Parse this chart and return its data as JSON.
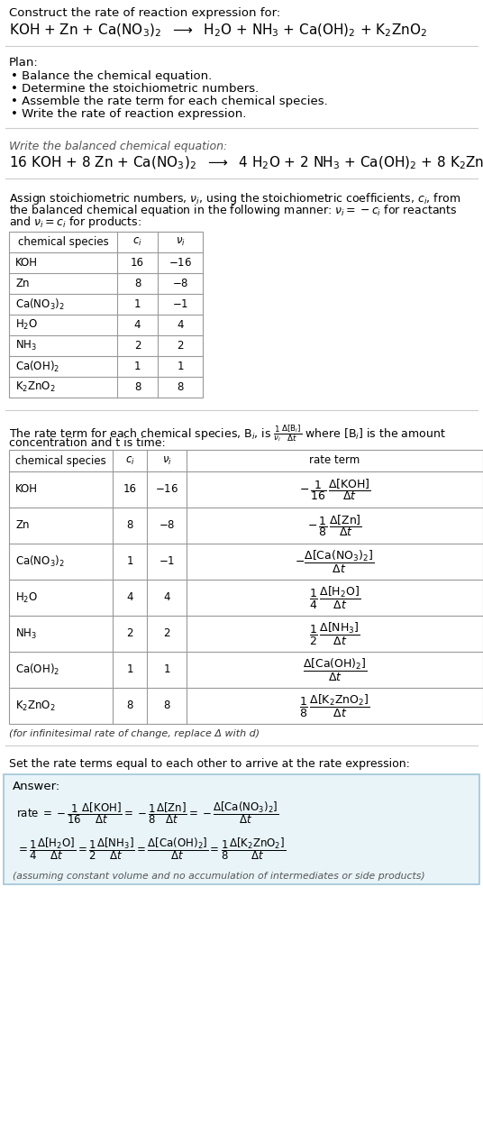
{
  "title": "Construct the rate of reaction expression for:",
  "plan_header": "Plan:",
  "plan_items": [
    "• Balance the chemical equation.",
    "• Determine the stoichiometric numbers.",
    "• Assemble the rate term for each chemical species.",
    "• Write the rate of reaction expression."
  ],
  "balanced_header": "Write the balanced chemical equation:",
  "stoich_intro_lines": [
    "Assign stoichiometric numbers, $\\nu_i$, using the stoichiometric coefficients, $c_i$, from",
    "the balanced chemical equation in the following manner: $\\nu_i = -c_i$ for reactants",
    "and $\\nu_i = c_i$ for products:"
  ],
  "table1_headers": [
    "chemical species",
    "$c_i$",
    "$\\nu_i$"
  ],
  "table1_data": [
    [
      "KOH",
      "16",
      "$-16$"
    ],
    [
      "Zn",
      "8",
      "$-8$"
    ],
    [
      "Ca(NO$_3$)$_2$",
      "1",
      "$-1$"
    ],
    [
      "H$_2$O",
      "4",
      "4"
    ],
    [
      "NH$_3$",
      "2",
      "2"
    ],
    [
      "Ca(OH)$_2$",
      "1",
      "1"
    ],
    [
      "K$_2$ZnO$_2$",
      "8",
      "8"
    ]
  ],
  "table2_headers": [
    "chemical species",
    "$c_i$",
    "$\\nu_i$",
    "rate term"
  ],
  "table2_data_species": [
    "KOH",
    "Zn",
    "Ca(NO$_3$)$_2$",
    "H$_2$O",
    "NH$_3$",
    "Ca(OH)$_2$",
    "K$_2$ZnO$_2$"
  ],
  "table2_data_ci": [
    "16",
    "8",
    "1",
    "4",
    "2",
    "1",
    "8"
  ],
  "table2_data_vi": [
    "$-16$",
    "$-8$",
    "$-1$",
    "4",
    "2",
    "1",
    "8"
  ],
  "infinitesimal_note": "(for infinitesimal rate of change, replace Δ with d)",
  "rate_expression_header": "Set the rate terms equal to each other to arrive at the rate expression:",
  "answer_label": "Answer:",
  "answer_note": "(assuming constant volume and no accumulation of intermediates or side products)",
  "bg_color": "#ffffff",
  "answer_bg": "#e8f4f8",
  "answer_border": "#9fc5d8",
  "table_border": "#999999",
  "sep_color": "#cccccc"
}
